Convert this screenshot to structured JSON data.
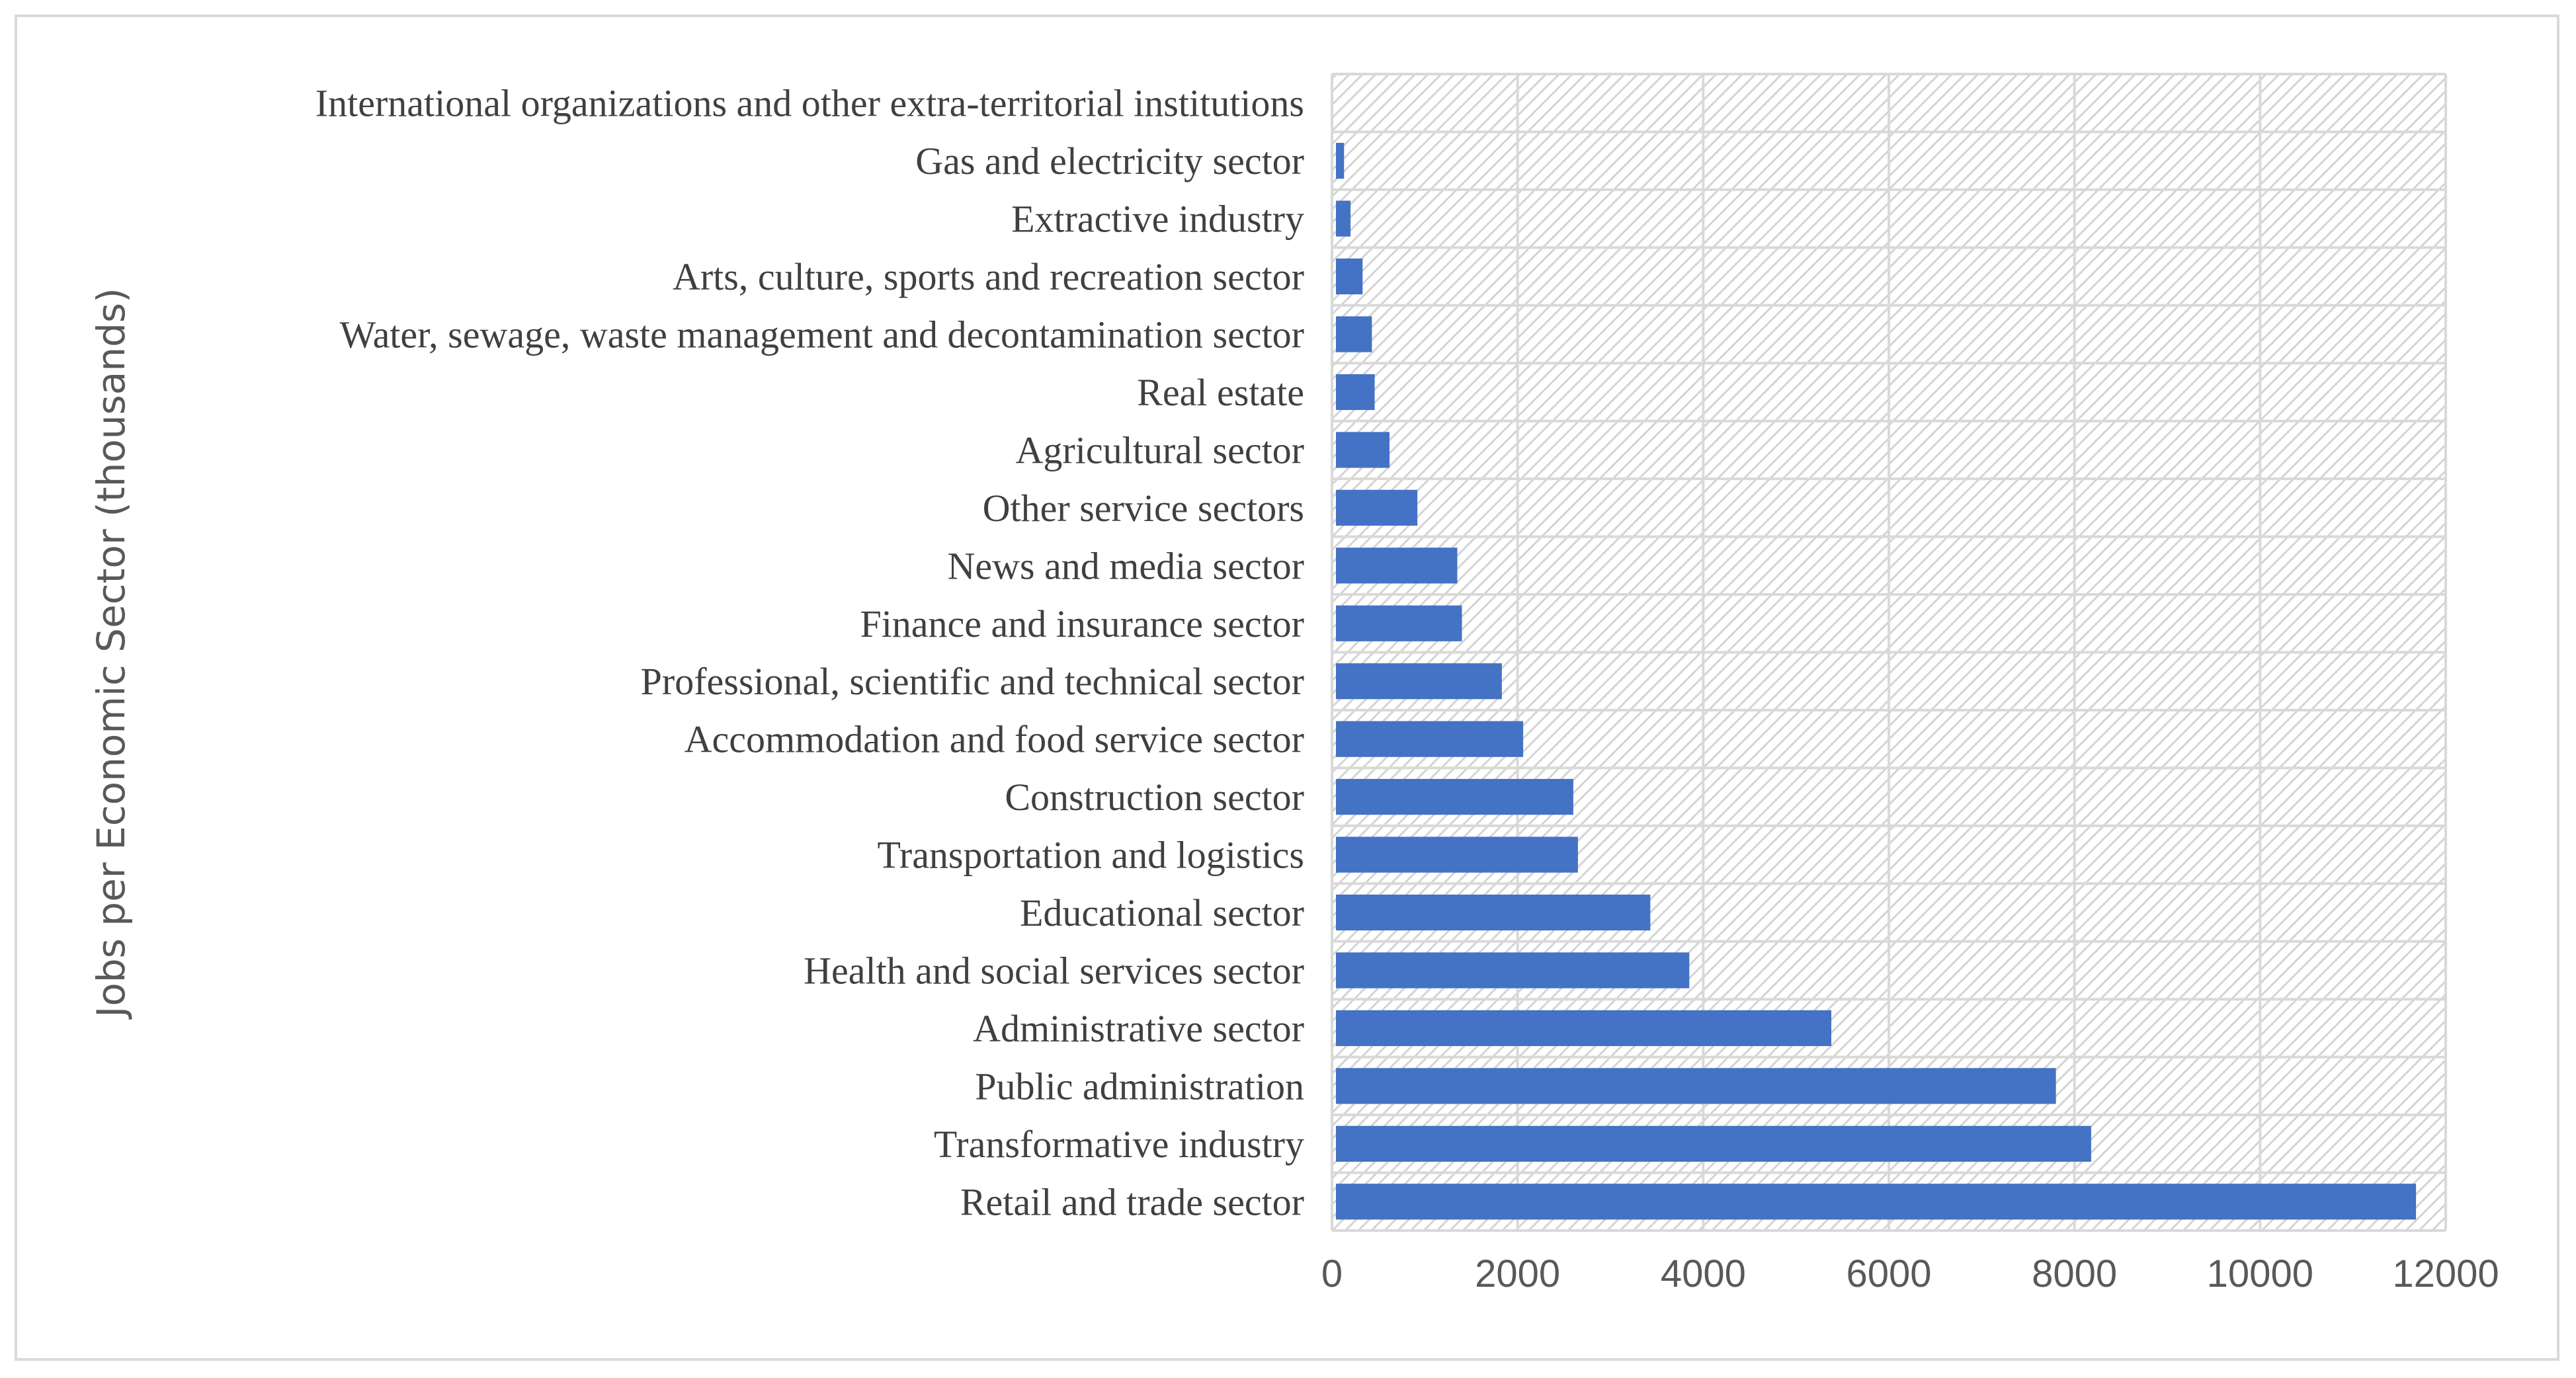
{
  "chart_data": {
    "type": "bar",
    "orientation": "horizontal",
    "title": "",
    "xlabel": "",
    "ylabel": "Jobs per Economic Sector (thousands)",
    "xlim": [
      0,
      12000
    ],
    "x_ticks": [
      0,
      2000,
      4000,
      6000,
      8000,
      10000,
      12000
    ],
    "grid": true,
    "legend": "none",
    "bar_color": "#4472c4",
    "categories": [
      "International organizations and other extra-territorial institutions",
      "Gas and electricity sector",
      "Extractive industry",
      "Arts, culture, sports and recreation sector",
      "Water, sewage, waste management and decontamination sector",
      "Real estate",
      "Agricultural sector",
      "Other service sectors",
      "News and media sector",
      "Finance and insurance sector",
      "Professional, scientific and technical sector",
      "Accommodation and food service sector",
      "Construction sector",
      "Transportation and logistics",
      "Educational sector",
      "Health and social services sector",
      "Administrative sector",
      "Public administration",
      "Transformative industry",
      "Retail and trade sector"
    ],
    "values": [
      5,
      130,
      200,
      330,
      430,
      460,
      620,
      920,
      1350,
      1400,
      1830,
      2060,
      2600,
      2650,
      3430,
      3850,
      5380,
      7800,
      8180,
      11680
    ]
  }
}
